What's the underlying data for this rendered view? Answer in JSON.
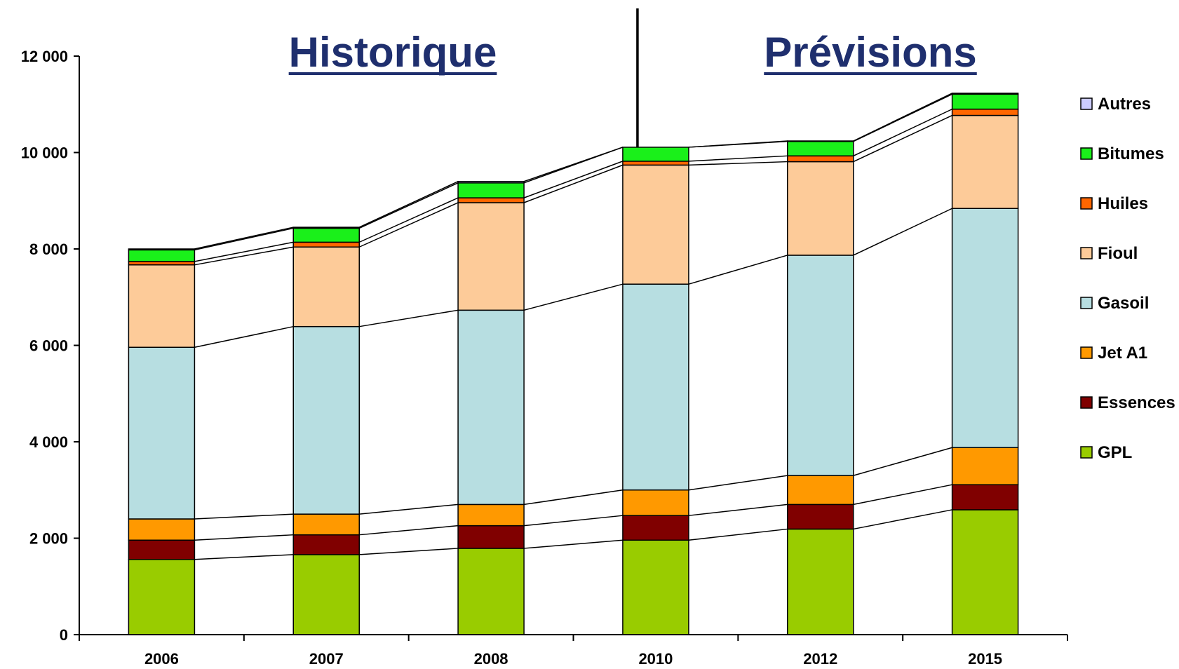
{
  "chart_data": {
    "type": "bar",
    "stacked": true,
    "categories": [
      "2006",
      "2007",
      "2008",
      "2010",
      "2012",
      "2015"
    ],
    "series": [
      {
        "name": "GPL",
        "color": "#99cc00",
        "values": [
          1560,
          1660,
          1790,
          1960,
          2190,
          2590
        ]
      },
      {
        "name": "Essences",
        "color": "#800000",
        "values": [
          400,
          410,
          470,
          510,
          510,
          520
        ]
      },
      {
        "name": "Jet A1",
        "color": "#ff9900",
        "values": [
          440,
          430,
          440,
          530,
          600,
          770
        ]
      },
      {
        "name": "Gasoil",
        "color": "#b7dee1",
        "values": [
          3560,
          3890,
          4030,
          4270,
          4570,
          4960
        ]
      },
      {
        "name": "Fioul",
        "color": "#fdcb99",
        "values": [
          1710,
          1650,
          2230,
          2470,
          1940,
          1930
        ]
      },
      {
        "name": "Huiles",
        "color": "#ff6600",
        "values": [
          70,
          100,
          100,
          80,
          120,
          130
        ]
      },
      {
        "name": "Bitumes",
        "color": "#1af01a",
        "values": [
          240,
          290,
          310,
          290,
          300,
          310
        ]
      },
      {
        "name": "Autres",
        "color": "#ccccff",
        "values": [
          20,
          20,
          30,
          0,
          10,
          20
        ]
      }
    ],
    "ylim": [
      0,
      12000
    ],
    "yticks": [
      "0",
      "2 000",
      "4 000",
      "6 000",
      "8 000",
      "10 000",
      "12 000"
    ],
    "legend_position": "right",
    "annotations": {
      "left_heading": "Historique",
      "right_heading": "Prévisions"
    },
    "divider_after_category": "2010",
    "heading_color": "#1f2f6e"
  }
}
